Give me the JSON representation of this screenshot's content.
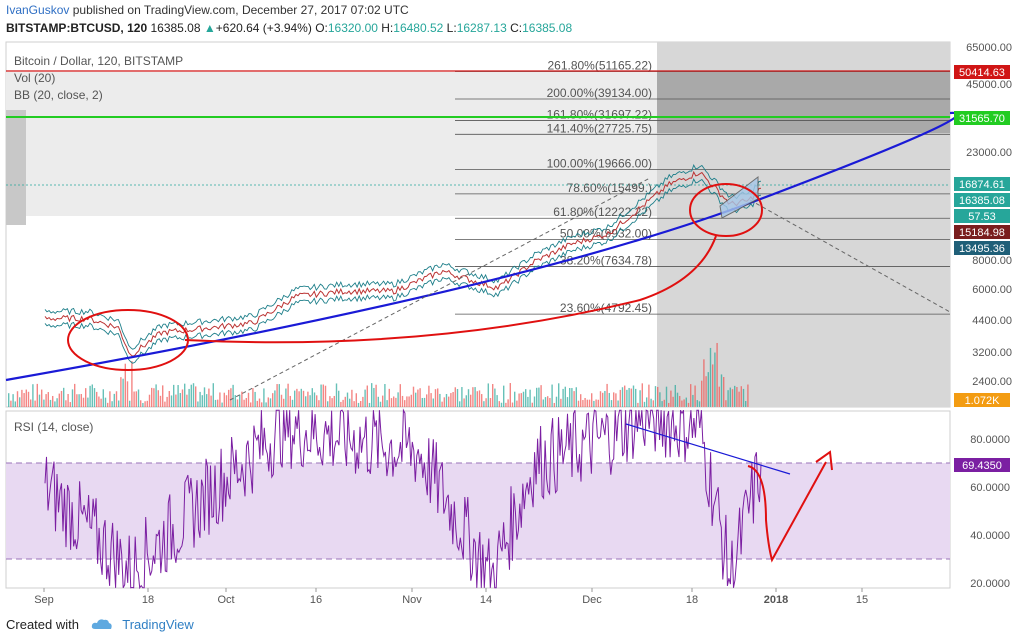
{
  "header": {
    "user": "IvanGuskov",
    "published": "published on TradingView.com, December 27, 2017 07:02 UTC",
    "symbol": "BITSTAMP:BTCUSD, 120",
    "last": "16385.08",
    "change": "+620.64 (+3.94%)",
    "o_label": "O:",
    "o": "16320.00",
    "h_label": "H:",
    "h": "16480.52",
    "l_label": "L:",
    "l": "16287.13",
    "c_label": "C:",
    "c": "16385.08"
  },
  "legend": {
    "title": "Bitcoin / Dollar, 120, BITSTAMP",
    "vol": "Vol (20)",
    "bb": "BB (20, close, 2)",
    "rsi": "RSI (14, close)"
  },
  "footer": {
    "created": "Created with",
    "brand": "TradingView"
  },
  "colors": {
    "trend": "#1a1ad6",
    "annotation": "#e01010",
    "hline_red": "#d01515",
    "hline_green": "#22cc22",
    "rsi_line": "#7b1fa2",
    "rsi_band": "#e8d9f2",
    "bull": "#26a69a",
    "bear": "#ef5350"
  },
  "chart_data": [
    {
      "type": "line",
      "name": "price",
      "x_axis_labels": [
        "Sep",
        "18",
        "Oct",
        "16",
        "Nov",
        "14",
        "Dec",
        "18",
        "2018",
        "15"
      ],
      "y_axis_labels": [
        "65000.00",
        "45000.00",
        "31565.70",
        "23000.00",
        "16874.61",
        "16385.08",
        "57.53",
        "15184.98",
        "13495.36",
        "8000.00",
        "6000.00",
        "4400.00",
        "3200.00",
        "2400.00",
        "1.072K"
      ],
      "y_scale": "log",
      "price_labels": [
        {
          "text": "50414.63",
          "color": "#d01515"
        },
        {
          "text": "31565.70",
          "color": "#22cc22"
        },
        {
          "text": "16874.61",
          "color": "#26a69a"
        },
        {
          "text": "16385.08",
          "color": "#26a69a"
        },
        {
          "text": "57.53",
          "color": "#26a69a"
        },
        {
          "text": "15184.98",
          "color": "#7a1e1e"
        },
        {
          "text": "13495.36",
          "color": "#1f5f78"
        },
        {
          "text": "1.072K",
          "color": "#f39c12"
        }
      ],
      "fib_levels": [
        {
          "label": "261.80%(51165.22)",
          "value": 51165.22
        },
        {
          "label": "200.00%(39134.00)",
          "value": 39134.0
        },
        {
          "label": "161.80%(31697.22)",
          "value": 31697.22
        },
        {
          "label": "141.40%(27725.75)",
          "value": 27725.75
        },
        {
          "label": "100.00%(19666.00)",
          "value": 19666.0
        },
        {
          "label": "78.60%(15499.)",
          "value": 15499
        },
        {
          "label": "61.80%(12222.22)",
          "value": 12222.22
        },
        {
          "label": "50.00%(9932.00)",
          "value": 9932.0
        },
        {
          "label": "38.20%(7634.78)",
          "value": 7634.78
        },
        {
          "label": "23.60%(4792.45)",
          "value": 4792.45
        }
      ],
      "series": [
        {
          "x": [
            "Sep 1",
            "Sep 8",
            "Sep 13",
            "Sep 15",
            "Sep 20",
            "Sep 28",
            "Oct 5",
            "Oct 12",
            "Oct 20",
            "Oct 28",
            "Nov 5",
            "Nov 11",
            "Nov 14",
            "Nov 20",
            "Nov 26",
            "Dec 2",
            "Dec 8",
            "Dec 12",
            "Dec 17",
            "Dec 22",
            "Dec 25",
            "Dec 27"
          ],
          "y": [
            4600,
            4600,
            4200,
            3200,
            4000,
            4200,
            4400,
            5700,
            6000,
            6000,
            7300,
            6500,
            6200,
            8000,
            9500,
            10500,
            14000,
            17000,
            19200,
            14000,
            14500,
            16385
          ]
        }
      ]
    },
    {
      "type": "line",
      "name": "RSI",
      "title": "RSI (14, close)",
      "ylim": [
        15,
        95
      ],
      "y_axis_labels": [
        "80.0000",
        "60.0000",
        "40.0000",
        "20.0000"
      ],
      "bands": [
        30,
        70
      ],
      "last_value_label": "69.4350",
      "series": [
        {
          "x": [
            "Sep 1",
            "Sep 15",
            "Oct 1",
            "Oct 10",
            "Nov 1",
            "Nov 13",
            "Nov 20",
            "Dec 1",
            "Dec 8",
            "Dec 17",
            "Dec 22",
            "Dec 27"
          ],
          "y": [
            60,
            25,
            65,
            85,
            75,
            22,
            70,
            80,
            90,
            85,
            22,
            69.435
          ]
        }
      ]
    }
  ]
}
